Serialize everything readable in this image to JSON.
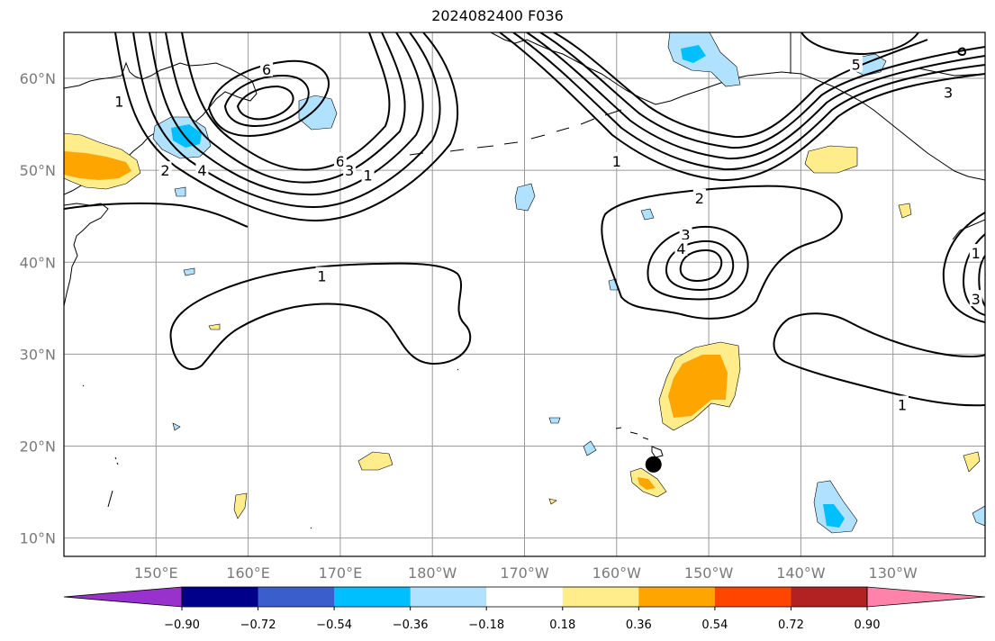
{
  "title": "2024082400 F036",
  "map": {
    "projection": "PlateCarree",
    "lon_range": [
      140,
      240
    ],
    "lat_range": [
      8,
      65
    ],
    "gridlines": true,
    "lon_tick_labels": [
      {
        "lon": 150,
        "label": "150°E"
      },
      {
        "lon": 160,
        "label": "160°E"
      },
      {
        "lon": 170,
        "label": "170°E"
      },
      {
        "lon": 180,
        "label": "180°W"
      },
      {
        "lon": 190,
        "label": "170°W"
      },
      {
        "lon": 200,
        "label": "160°W"
      },
      {
        "lon": 210,
        "label": "150°W"
      },
      {
        "lon": 220,
        "label": "140°W"
      },
      {
        "lon": 230,
        "label": "130°W"
      }
    ],
    "lat_tick_labels": [
      {
        "lat": 60,
        "label": "60°N"
      },
      {
        "lat": 50,
        "label": "50°N"
      },
      {
        "lat": 40,
        "label": "40°N"
      },
      {
        "lat": 30,
        "label": "30°N"
      },
      {
        "lat": 20,
        "label": "20°N"
      },
      {
        "lat": 10,
        "label": "10°N"
      }
    ],
    "marker": {
      "lon": 204,
      "lat": 18,
      "color": "#000000"
    },
    "contour_labels": [
      {
        "lon": 146,
        "lat": 57.5,
        "label": "1"
      },
      {
        "lon": 162,
        "lat": 61,
        "label": "6"
      },
      {
        "lon": 151,
        "lat": 50,
        "label": "2"
      },
      {
        "lon": 155,
        "lat": 50,
        "label": "4"
      },
      {
        "lon": 170,
        "lat": 51,
        "label": "6"
      },
      {
        "lon": 171,
        "lat": 50,
        "label": "3"
      },
      {
        "lon": 173,
        "lat": 49.5,
        "label": "1"
      },
      {
        "lon": 168,
        "lat": 38.5,
        "label": "1"
      },
      {
        "lon": 209,
        "lat": 47,
        "label": "2"
      },
      {
        "lon": 207.5,
        "lat": 43,
        "label": "3"
      },
      {
        "lon": 207,
        "lat": 41.5,
        "label": "4"
      },
      {
        "lon": 226,
        "lat": 61.5,
        "label": "5"
      },
      {
        "lon": 236,
        "lat": 58.5,
        "label": "3"
      },
      {
        "lon": 231,
        "lat": 24.5,
        "label": "1"
      },
      {
        "lon": 239,
        "lat": 41,
        "label": "1"
      },
      {
        "lon": 239,
        "lat": 36,
        "label": "3"
      },
      {
        "lon": 200,
        "lat": 51,
        "label": "1"
      }
    ],
    "shaded_anomalies": [
      {
        "lon": 145,
        "lat": 51,
        "class": "0.36"
      },
      {
        "lon": 152,
        "lat": 54,
        "class": "-0.36"
      },
      {
        "lon": 168,
        "lat": 57,
        "class": "-0.36"
      },
      {
        "lon": 209,
        "lat": 26.5,
        "class": "0.36"
      },
      {
        "lon": 158,
        "lat": 50,
        "class": "-0.36"
      },
      {
        "lon": 159.5,
        "lat": 62.5,
        "class": "-0.36"
      },
      {
        "lon": 180,
        "lat": 18.5,
        "class": "0.18"
      },
      {
        "lon": 202,
        "lat": 16,
        "class": "0.36"
      },
      {
        "lon": 225,
        "lat": 13,
        "class": "-0.36"
      },
      {
        "lon": 236,
        "lat": 18,
        "class": "0.18"
      },
      {
        "lon": 222,
        "lat": 51,
        "class": "0.18"
      }
    ]
  },
  "colorbar": {
    "colors": [
      "#9932CC",
      "#00008B",
      "#3A5FCD",
      "#00BFFF",
      "#B0E2FF",
      "#FFFFFF",
      "#FFEC8B",
      "#FFA500",
      "#FF4500",
      "#B22222",
      "#FF82AB"
    ],
    "tick_labels": [
      "−0.90",
      "−0.72",
      "−0.54",
      "−0.36",
      "−0.18",
      "0.18",
      "0.36",
      "0.54",
      "0.72",
      "0.90"
    ]
  }
}
